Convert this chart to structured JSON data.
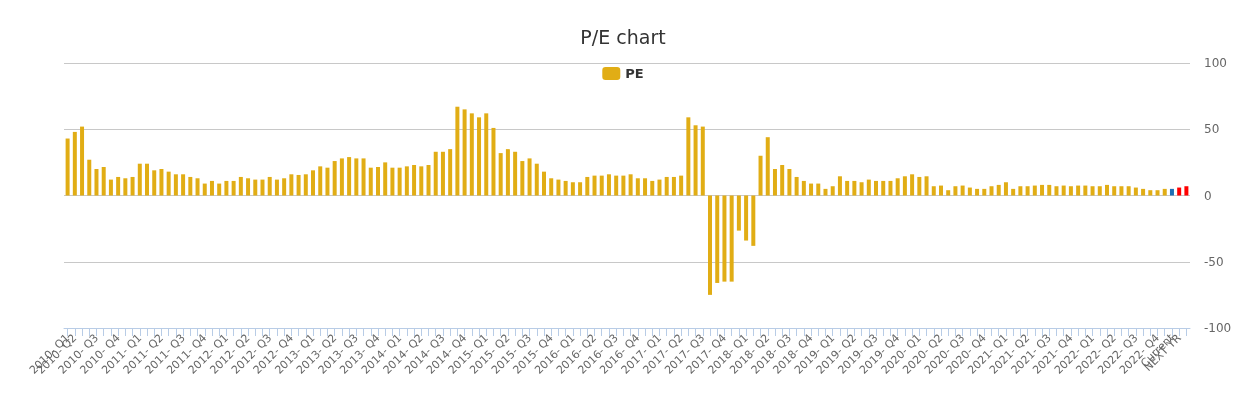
{
  "chart_data": {
    "type": "bar",
    "title": "P/E chart",
    "categories": [
      "2010- Q1",
      "2010- Q2",
      null,
      null,
      "2010- Q3",
      null,
      null,
      "2010- Q4",
      null,
      null,
      "2011- Q1",
      null,
      null,
      "2011- Q2",
      null,
      null,
      "2011- Q3",
      null,
      null,
      "2011- Q4",
      null,
      null,
      "2012- Q1",
      null,
      null,
      "2012- Q2",
      null,
      null,
      "2012- Q3",
      null,
      null,
      "2012- Q4",
      null,
      null,
      "2013- Q1",
      null,
      null,
      "2013- Q2",
      null,
      null,
      "2013- Q3",
      null,
      null,
      "2013- Q4",
      null,
      null,
      "2014- Q1",
      null,
      null,
      "2014- Q2",
      null,
      null,
      "2014- Q3",
      null,
      null,
      "2014- Q4",
      null,
      null,
      "2015- Q1",
      null,
      null,
      "2015- Q2",
      null,
      null,
      "2015- Q3",
      null,
      null,
      "2015- Q4",
      null,
      null,
      "2016- Q1",
      null,
      null,
      "2016- Q2",
      null,
      null,
      "2016- Q3",
      null,
      null,
      "2016- Q4",
      null,
      null,
      "2017- Q1",
      null,
      null,
      "2017- Q2",
      null,
      null,
      "2017- Q3",
      null,
      null,
      "2017- Q4",
      null,
      null,
      "2018- Q1",
      null,
      null,
      "2018- Q2",
      null,
      null,
      "2018- Q3",
      null,
      null,
      "2018- Q4",
      null,
      null,
      "2019- Q1",
      null,
      null,
      "2019- Q2",
      null,
      null,
      "2019- Q3",
      null,
      null,
      "2019- Q4",
      null,
      null,
      "2020- Q1",
      null,
      null,
      "2020- Q2",
      null,
      null,
      "2020- Q3",
      null,
      null,
      "2020- Q4",
      null,
      null,
      "2021- Q1",
      null,
      null,
      "2021- Q2",
      null,
      null,
      "2021- Q3",
      null,
      null,
      "2021- Q4",
      null,
      null,
      "2022- Q1",
      null,
      null,
      "2022- Q2",
      null,
      null,
      "2022- Q3",
      null,
      null,
      "2022- Q4",
      null,
      "Current",
      "NEXT YR",
      null
    ],
    "series": [
      {
        "name": "PE",
        "color": "#e1ad15",
        "values": [
          43,
          48,
          52,
          27,
          20,
          21.5,
          12,
          14,
          13,
          14,
          24,
          24,
          19,
          20,
          18,
          16,
          16,
          14,
          13,
          9,
          11,
          9,
          11,
          11,
          14,
          13,
          12,
          12,
          14,
          12,
          13,
          16,
          15.5,
          16,
          19,
          22,
          21,
          26,
          28,
          29,
          28,
          28,
          21,
          21.5,
          25,
          21,
          21,
          22,
          23,
          22,
          23,
          33,
          33,
          35,
          67,
          65,
          62,
          59,
          62,
          51,
          32,
          35,
          33,
          26,
          28,
          24,
          18,
          13,
          12,
          11,
          10,
          10,
          14,
          15,
          15,
          16,
          15,
          15,
          16,
          13,
          13,
          11,
          12,
          14,
          14,
          15,
          59,
          53,
          52,
          -75,
          -66,
          -65,
          -65,
          -26.5,
          -34,
          -38,
          30,
          44,
          20,
          23,
          20,
          14,
          11,
          9,
          9,
          5,
          7,
          14.5,
          11,
          11,
          10,
          12,
          11,
          11,
          11,
          13,
          14.5,
          16,
          14,
          14.5,
          7,
          7.5,
          4,
          7,
          7.5,
          6,
          5,
          5,
          7,
          8,
          10,
          5,
          7,
          7,
          7.5,
          8,
          8,
          7,
          7.5,
          7,
          7.5,
          7.5,
          7,
          7,
          8,
          7,
          7,
          7,
          6,
          5,
          4,
          4,
          5,
          5,
          6,
          7
        ],
        "colors": [
          "#e1ad15",
          "#e1ad15",
          "#e1ad15",
          "#e1ad15",
          "#e1ad15",
          "#e1ad15",
          "#e1ad15",
          "#e1ad15",
          "#e1ad15",
          "#e1ad15",
          "#e1ad15",
          "#e1ad15",
          "#e1ad15",
          "#e1ad15",
          "#e1ad15",
          "#e1ad15",
          "#e1ad15",
          "#e1ad15",
          "#e1ad15",
          "#e1ad15",
          "#e1ad15",
          "#e1ad15",
          "#e1ad15",
          "#e1ad15",
          "#e1ad15",
          "#e1ad15",
          "#e1ad15",
          "#e1ad15",
          "#e1ad15",
          "#e1ad15",
          "#e1ad15",
          "#e1ad15",
          "#e1ad15",
          "#e1ad15",
          "#e1ad15",
          "#e1ad15",
          "#e1ad15",
          "#e1ad15",
          "#e1ad15",
          "#e1ad15",
          "#e1ad15",
          "#e1ad15",
          "#e1ad15",
          "#e1ad15",
          "#e1ad15",
          "#e1ad15",
          "#e1ad15",
          "#e1ad15",
          "#e1ad15",
          "#e1ad15",
          "#e1ad15",
          "#e1ad15",
          "#e1ad15",
          "#e1ad15",
          "#e1ad15",
          "#e1ad15",
          "#e1ad15",
          "#e1ad15",
          "#e1ad15",
          "#e1ad15",
          "#e1ad15",
          "#e1ad15",
          "#e1ad15",
          "#e1ad15",
          "#e1ad15",
          "#e1ad15",
          "#e1ad15",
          "#e1ad15",
          "#e1ad15",
          "#e1ad15",
          "#e1ad15",
          "#e1ad15",
          "#e1ad15",
          "#e1ad15",
          "#e1ad15",
          "#e1ad15",
          "#e1ad15",
          "#e1ad15",
          "#e1ad15",
          "#e1ad15",
          "#e1ad15",
          "#e1ad15",
          "#e1ad15",
          "#e1ad15",
          "#e1ad15",
          "#e1ad15",
          "#e1ad15",
          "#e1ad15",
          "#e1ad15",
          "#e1ad15",
          "#e1ad15",
          "#e1ad15",
          "#e1ad15",
          "#e1ad15",
          "#e1ad15",
          "#e1ad15",
          "#e1ad15",
          "#e1ad15",
          "#e1ad15",
          "#e1ad15",
          "#e1ad15",
          "#e1ad15",
          "#e1ad15",
          "#e1ad15",
          "#e1ad15",
          "#e1ad15",
          "#e1ad15",
          "#e1ad15",
          "#e1ad15",
          "#e1ad15",
          "#e1ad15",
          "#e1ad15",
          "#e1ad15",
          "#e1ad15",
          "#e1ad15",
          "#e1ad15",
          "#e1ad15",
          "#e1ad15",
          "#e1ad15",
          "#e1ad15",
          "#e1ad15",
          "#e1ad15",
          "#e1ad15",
          "#e1ad15",
          "#e1ad15",
          "#e1ad15",
          "#e1ad15",
          "#e1ad15",
          "#e1ad15",
          "#e1ad15",
          "#e1ad15",
          "#e1ad15",
          "#e1ad15",
          "#e1ad15",
          "#e1ad15",
          "#e1ad15",
          "#e1ad15",
          "#e1ad15",
          "#e1ad15",
          "#e1ad15",
          "#e1ad15",
          "#e1ad15",
          "#e1ad15",
          "#e1ad15",
          "#e1ad15",
          "#e1ad15",
          "#e1ad15",
          "#e1ad15",
          "#e1ad15",
          "#e1ad15",
          "#e1ad15",
          "#e1ad15",
          "#e1ad15",
          "#1f6fb4",
          "#ff0000",
          "#ff0000"
        ]
      }
    ],
    "ylim": [
      -100,
      100
    ],
    "yticks": [
      -100,
      -50,
      0,
      50,
      100
    ],
    "grid": "y",
    "legend": "top"
  }
}
